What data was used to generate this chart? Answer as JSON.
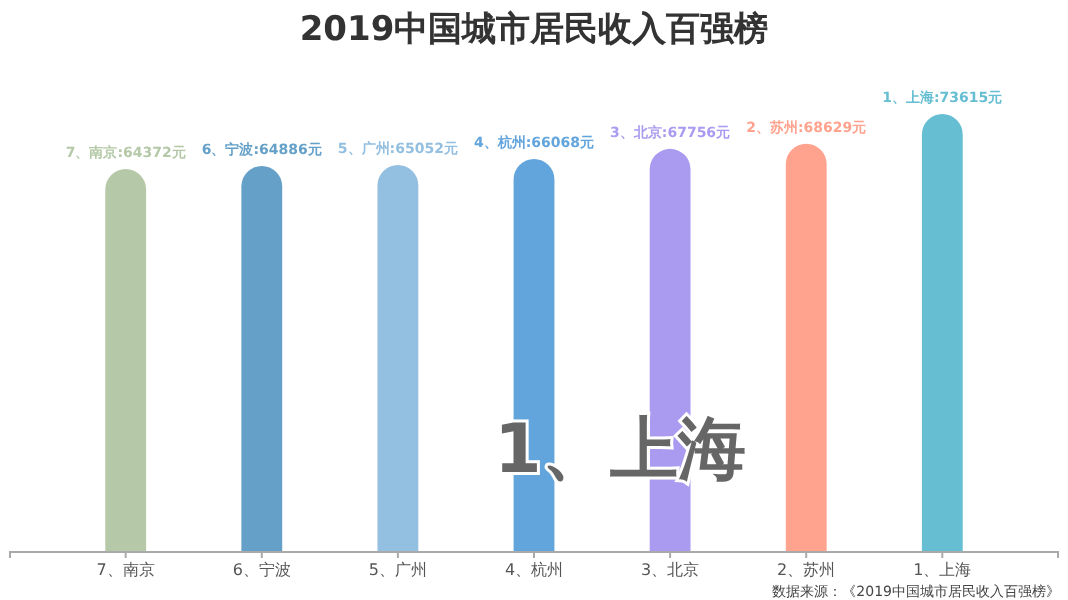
{
  "chart_data": {
    "type": "bar",
    "title": "2019中国城市居民收入百强榜",
    "categories": [
      "7、南京",
      "6、宁波",
      "5、广州",
      "4、杭州",
      "3、北京",
      "2、苏州",
      "1、上海"
    ],
    "values": [
      64372,
      64886,
      65052,
      66068,
      67756,
      68629,
      73615
    ],
    "colors": [
      "#b5c9a8",
      "#64a0c8",
      "#93bfe0",
      "#62a4dc",
      "#ab9bf0",
      "#ffa28e",
      "#66bed3"
    ],
    "value_labels": [
      "7、南京:64372元",
      "6、宁波:64886元",
      "5、广州:65052元",
      "4、杭州:66068元",
      "3、北京:67756元",
      "2、苏州:68629元",
      "1、上海:73615元"
    ],
    "annotations": [
      "1、上海",
      "数据来源：《2019中国城市居民收入百强榜》"
    ]
  }
}
